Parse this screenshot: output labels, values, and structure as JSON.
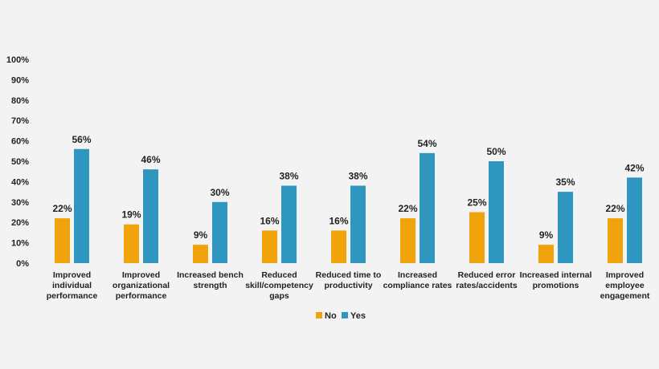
{
  "chart_data": {
    "type": "bar",
    "title": "",
    "xlabel": "",
    "ylabel": "",
    "ylim": [
      0,
      100
    ],
    "yticks": [
      "0%",
      "10%",
      "20%",
      "30%",
      "40%",
      "50%",
      "60%",
      "70%",
      "80%",
      "90%",
      "100%"
    ],
    "categories": [
      [
        "Improved",
        "individual",
        "performance"
      ],
      [
        "Improved",
        "organizational",
        "performance"
      ],
      [
        "Increased bench",
        "strength"
      ],
      [
        "Reduced",
        "skill/competency",
        "gaps"
      ],
      [
        "Reduced time to",
        "productivity"
      ],
      [
        "Increased",
        "compliance rates"
      ],
      [
        "Reduced error",
        "rates/accidents"
      ],
      [
        "Increased internal",
        "promotions"
      ],
      [
        "Improved",
        "employee",
        "engagement"
      ]
    ],
    "series": [
      {
        "name": "No",
        "color": "#f0a30a",
        "values": [
          22,
          19,
          9,
          16,
          16,
          22,
          25,
          9,
          22
        ],
        "labels": [
          "22%",
          "19%",
          "9%",
          "16%",
          "16%",
          "22%",
          "25%",
          "9%",
          "22%"
        ]
      },
      {
        "name": "Yes",
        "color": "#2e96bf",
        "values": [
          56,
          46,
          30,
          38,
          38,
          54,
          50,
          35,
          42
        ],
        "labels": [
          "56%",
          "46%",
          "30%",
          "38%",
          "38%",
          "54%",
          "50%",
          "35%",
          "42%"
        ]
      }
    ],
    "grid": false,
    "legend_position": "bottom-center"
  }
}
